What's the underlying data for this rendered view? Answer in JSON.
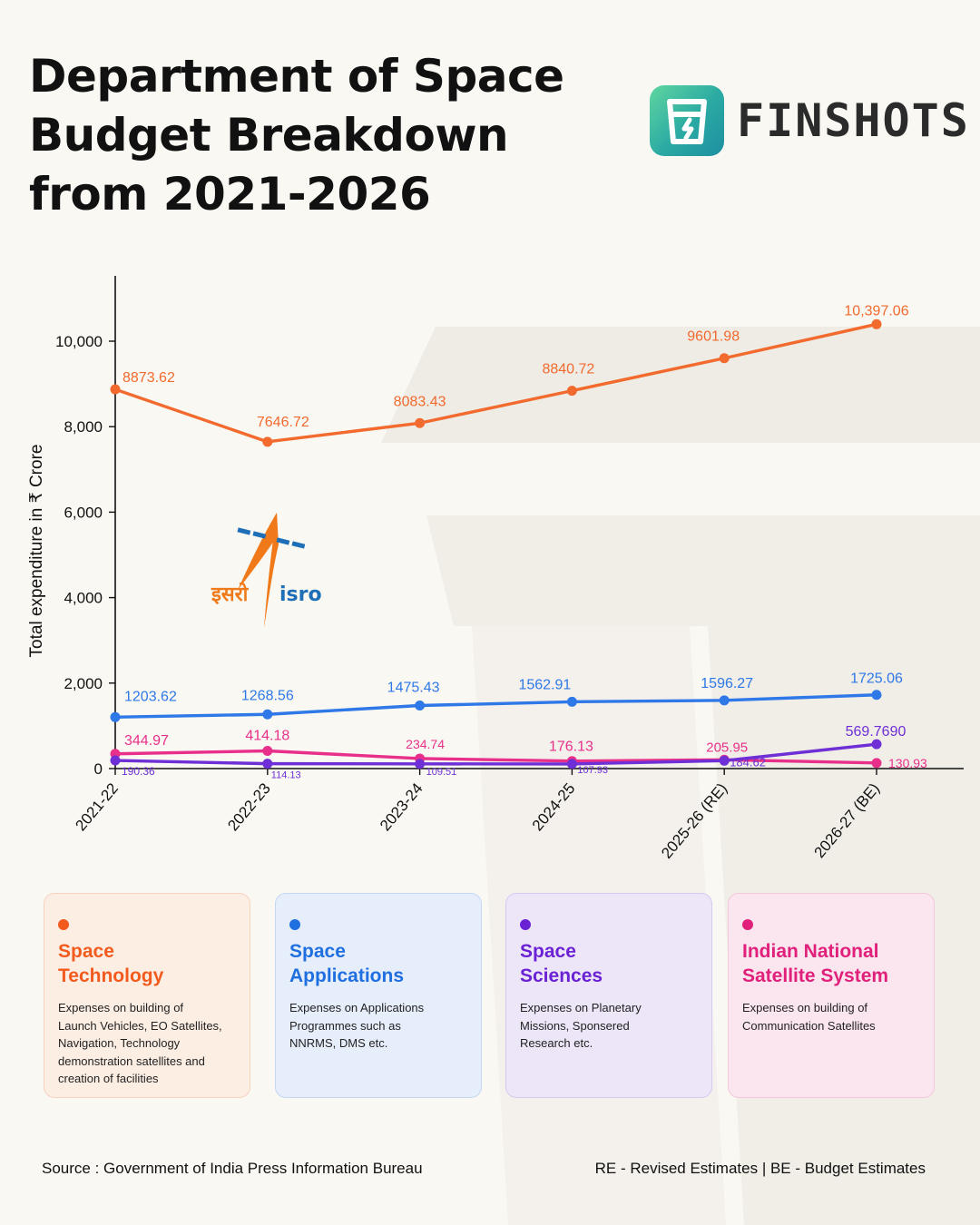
{
  "title_lines": [
    "Department of Space",
    "Budget Breakdown",
    "from 2021-2026"
  ],
  "brand": {
    "name": "FINSHOTS"
  },
  "isro_logo": {
    "hindi": "इसरो",
    "english": "isro"
  },
  "chart_data": {
    "type": "line",
    "title": "Department of Space Budget Breakdown from 2021-2026",
    "ylabel": "Total expenditure in ₹ Crore",
    "xlabel": "",
    "categories": [
      "2021-22",
      "2022-23",
      "2023-24",
      "2024-25",
      "2025-26 (RE)",
      "2026-27 (BE)"
    ],
    "ylim": [
      0,
      11500
    ],
    "yticks": [
      0,
      2000,
      4000,
      6000,
      8000,
      10000
    ],
    "ytick_labels": [
      "0",
      "2,000",
      "4,000",
      "6,000",
      "8,000",
      "10,000"
    ],
    "grid": false,
    "series": [
      {
        "name": "Space Technology",
        "color": "#f26a2e",
        "values": [
          8873.62,
          7646.72,
          8083.43,
          8840.72,
          9601.98,
          10397.06
        ],
        "labels": [
          "8873.62",
          "7646.72",
          "8083.43",
          "8840.72",
          "9601.98",
          "10,397.06"
        ]
      },
      {
        "name": "Space Applications",
        "color": "#2e78e8",
        "values": [
          1203.62,
          1268.56,
          1475.43,
          1562.91,
          1596.27,
          1725.06
        ],
        "labels": [
          "1203.62",
          "1268.56",
          "1475.43",
          "1562.91",
          "1596.27",
          "1725.06"
        ]
      },
      {
        "name": "Indian National Satellite System",
        "color": "#e8308a",
        "values": [
          344.97,
          414.18,
          234.74,
          176.13,
          205.95,
          130.93
        ],
        "labels": [
          "344.97",
          "414.18",
          "234.74",
          "176.13",
          "205.95",
          "130.93"
        ]
      },
      {
        "name": "Space Sciences",
        "color": "#6e2fd6",
        "values": [
          190.36,
          114.13,
          109.51,
          107.93,
          184.62,
          569.769
        ],
        "labels": [
          "190.36",
          "114.13",
          "109.51",
          "107.93",
          "184.62",
          "569.7690"
        ]
      }
    ]
  },
  "legend_cards": [
    {
      "title_lines": [
        "Space",
        "Technology"
      ],
      "color": "#f25a1e",
      "bg": "#fdeee4",
      "border": "#f6d2bf",
      "desc_lines": [
        "Expenses on building of",
        "Launch Vehicles, EO Satellites,",
        "Navigation, Technology",
        "demonstration satellites and",
        "creation of facilities"
      ]
    },
    {
      "title_lines": [
        "Space",
        "Applications"
      ],
      "color": "#1f6fe0",
      "bg": "#e6eefb",
      "border": "#c4d6f4",
      "desc_lines": [
        "Expenses on Applications",
        "Programmes such as",
        "NNRMS, DMS etc."
      ]
    },
    {
      "title_lines": [
        "Space",
        "Sciences"
      ],
      "color": "#6a22d4",
      "bg": "#ece6f8",
      "border": "#d6c9f2",
      "desc_lines": [
        "Expenses on Planetary",
        "Missions, Sponsered",
        "Research etc."
      ]
    },
    {
      "title_lines": [
        "Indian National",
        "Satellite System"
      ],
      "color": "#e0207a",
      "bg": "#fbe6f0",
      "border": "#f3c7dc",
      "desc_lines": [
        "Expenses on building of",
        "Communication Satellites"
      ]
    }
  ],
  "footer": {
    "source": "Source : Government of India Press Information Bureau",
    "note": "RE - Revised Estimates | BE - Budget Estimates"
  }
}
